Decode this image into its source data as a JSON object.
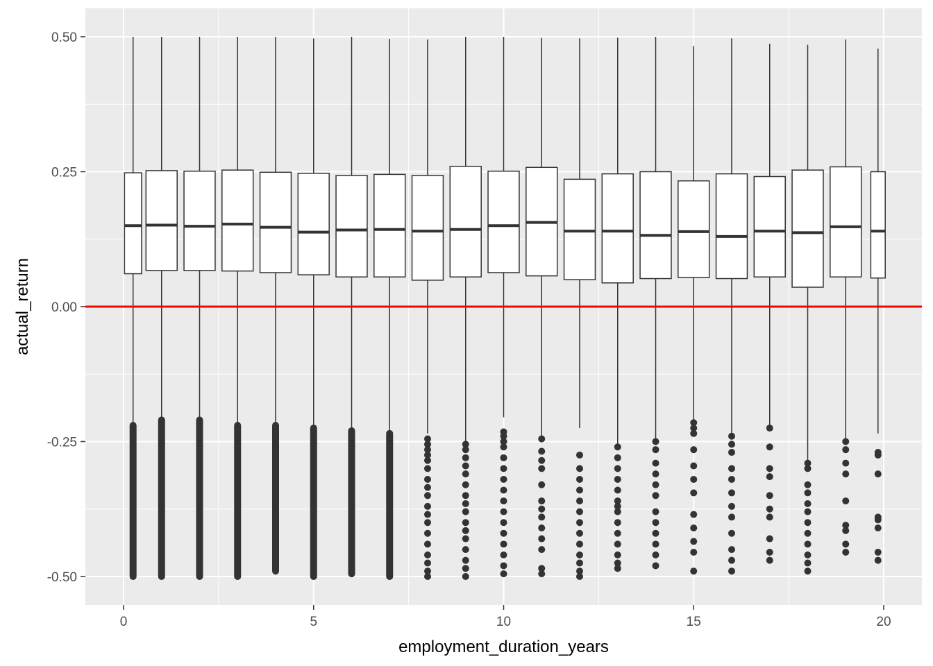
{
  "chart_data": {
    "type": "boxplot",
    "title": "",
    "xlabel": "employment_duration_years",
    "ylabel": "actual_return",
    "xlim": [
      -0.9,
      20.5
    ],
    "ylim": [
      -0.55,
      0.555
    ],
    "x_ticks": [
      0,
      5,
      10,
      15,
      20
    ],
    "x_tick_labels": [
      "0",
      "5",
      "10",
      "15",
      "20"
    ],
    "y_ticks": [
      -0.5,
      -0.25,
      0,
      0.25,
      0.5
    ],
    "y_tick_labels": [
      "-0.50",
      "-0.25",
      "0.00",
      "0.25",
      "0.50"
    ],
    "grid": true,
    "panel_background": "#ebebeb",
    "box_fill": "#ffffff",
    "box_outline": "#333333",
    "outlier_color": "#333333",
    "reference_line": {
      "y": 0,
      "color": "#ff0000"
    },
    "boxes": [
      {
        "x": 0.25,
        "width": 0.45,
        "q1": 0.061,
        "median": 0.15,
        "q3": 0.248,
        "whisker_low": -0.22,
        "whisker_high": 0.5
      },
      {
        "x": 1,
        "width": 0.82,
        "q1": 0.067,
        "median": 0.151,
        "q3": 0.252,
        "whisker_low": -0.21,
        "whisker_high": 0.5
      },
      {
        "x": 2,
        "width": 0.82,
        "q1": 0.067,
        "median": 0.149,
        "q3": 0.251,
        "whisker_low": -0.21,
        "whisker_high": 0.5
      },
      {
        "x": 3,
        "width": 0.82,
        "q1": 0.066,
        "median": 0.153,
        "q3": 0.253,
        "whisker_low": -0.22,
        "whisker_high": 0.5
      },
      {
        "x": 4,
        "width": 0.82,
        "q1": 0.063,
        "median": 0.147,
        "q3": 0.249,
        "whisker_low": -0.22,
        "whisker_high": 0.5
      },
      {
        "x": 5,
        "width": 0.82,
        "q1": 0.059,
        "median": 0.138,
        "q3": 0.247,
        "whisker_low": -0.225,
        "whisker_high": 0.497
      },
      {
        "x": 6,
        "width": 0.82,
        "q1": 0.055,
        "median": 0.142,
        "q3": 0.243,
        "whisker_low": -0.23,
        "whisker_high": 0.5
      },
      {
        "x": 7,
        "width": 0.82,
        "q1": 0.055,
        "median": 0.143,
        "q3": 0.245,
        "whisker_low": -0.235,
        "whisker_high": 0.496
      },
      {
        "x": 8,
        "width": 0.82,
        "q1": 0.049,
        "median": 0.14,
        "q3": 0.243,
        "whisker_low": -0.235,
        "whisker_high": 0.495
      },
      {
        "x": 9,
        "width": 0.82,
        "q1": 0.055,
        "median": 0.143,
        "q3": 0.26,
        "whisker_low": -0.25,
        "whisker_high": 0.5
      },
      {
        "x": 10,
        "width": 0.82,
        "q1": 0.063,
        "median": 0.15,
        "q3": 0.251,
        "whisker_low": -0.205,
        "whisker_high": 0.5
      },
      {
        "x": 11,
        "width": 0.82,
        "q1": 0.057,
        "median": 0.156,
        "q3": 0.258,
        "whisker_low": -0.245,
        "whisker_high": 0.498
      },
      {
        "x": 12,
        "width": 0.82,
        "q1": 0.05,
        "median": 0.14,
        "q3": 0.236,
        "whisker_low": -0.225,
        "whisker_high": 0.497
      },
      {
        "x": 13,
        "width": 0.82,
        "q1": 0.044,
        "median": 0.14,
        "q3": 0.246,
        "whisker_low": -0.26,
        "whisker_high": 0.498
      },
      {
        "x": 14,
        "width": 0.82,
        "q1": 0.052,
        "median": 0.132,
        "q3": 0.25,
        "whisker_low": -0.25,
        "whisker_high": 0.5
      },
      {
        "x": 15,
        "width": 0.82,
        "q1": 0.054,
        "median": 0.139,
        "q3": 0.233,
        "whisker_low": -0.215,
        "whisker_high": 0.483
      },
      {
        "x": 16,
        "width": 0.82,
        "q1": 0.052,
        "median": 0.13,
        "q3": 0.246,
        "whisker_low": -0.24,
        "whisker_high": 0.497
      },
      {
        "x": 17,
        "width": 0.82,
        "q1": 0.055,
        "median": 0.14,
        "q3": 0.241,
        "whisker_low": -0.225,
        "whisker_high": 0.487
      },
      {
        "x": 18,
        "width": 0.82,
        "q1": 0.036,
        "median": 0.137,
        "q3": 0.253,
        "whisker_low": -0.29,
        "whisker_high": 0.485
      },
      {
        "x": 19,
        "width": 0.82,
        "q1": 0.055,
        "median": 0.148,
        "q3": 0.259,
        "whisker_low": -0.245,
        "whisker_high": 0.495
      },
      {
        "x": 19.85,
        "width": 0.38,
        "q1": 0.053,
        "median": 0.14,
        "q3": 0.25,
        "whisker_low": -0.235,
        "whisker_high": 0.478
      }
    ],
    "outliers": [
      {
        "x": 0.25,
        "band": [
          -0.5,
          -0.22
        ]
      },
      {
        "x": 1,
        "band": [
          -0.5,
          -0.21
        ]
      },
      {
        "x": 2,
        "band": [
          -0.5,
          -0.21
        ]
      },
      {
        "x": 3,
        "band": [
          -0.5,
          -0.22
        ]
      },
      {
        "x": 4,
        "band": [
          -0.49,
          -0.22
        ]
      },
      {
        "x": 5,
        "band": [
          -0.5,
          -0.225
        ]
      },
      {
        "x": 6,
        "band": [
          -0.495,
          -0.23
        ]
      },
      {
        "x": 7,
        "band": [
          -0.5,
          -0.235
        ]
      },
      {
        "x": 8,
        "y": [
          -0.245,
          -0.255,
          -0.265,
          -0.275,
          -0.285,
          -0.3,
          -0.32,
          -0.335,
          -0.35,
          -0.37,
          -0.385,
          -0.4,
          -0.42,
          -0.44,
          -0.46,
          -0.475,
          -0.49,
          -0.5
        ]
      },
      {
        "x": 9,
        "y": [
          -0.255,
          -0.265,
          -0.28,
          -0.295,
          -0.31,
          -0.33,
          -0.35,
          -0.365,
          -0.38,
          -0.4,
          -0.415,
          -0.43,
          -0.45,
          -0.47,
          -0.485,
          -0.5
        ]
      },
      {
        "x": 10,
        "y": [
          -0.232,
          -0.24,
          -0.25,
          -0.26,
          -0.28,
          -0.3,
          -0.32,
          -0.34,
          -0.36,
          -0.38,
          -0.4,
          -0.42,
          -0.44,
          -0.46,
          -0.48,
          -0.495
        ]
      },
      {
        "x": 11,
        "y": [
          -0.245,
          -0.268,
          -0.285,
          -0.3,
          -0.33,
          -0.36,
          -0.375,
          -0.39,
          -0.41,
          -0.43,
          -0.45,
          -0.485,
          -0.495
        ]
      },
      {
        "x": 12,
        "y": [
          -0.275,
          -0.3,
          -0.32,
          -0.34,
          -0.36,
          -0.38,
          -0.4,
          -0.42,
          -0.44,
          -0.46,
          -0.475,
          -0.49,
          -0.5
        ]
      },
      {
        "x": 13,
        "y": [
          -0.26,
          -0.28,
          -0.3,
          -0.32,
          -0.34,
          -0.36,
          -0.37,
          -0.38,
          -0.4,
          -0.42,
          -0.44,
          -0.46,
          -0.475,
          -0.485
        ]
      },
      {
        "x": 14,
        "y": [
          -0.25,
          -0.265,
          -0.29,
          -0.31,
          -0.33,
          -0.35,
          -0.38,
          -0.4,
          -0.42,
          -0.44,
          -0.46,
          -0.48
        ]
      },
      {
        "x": 15,
        "y": [
          -0.215,
          -0.225,
          -0.235,
          -0.265,
          -0.295,
          -0.32,
          -0.345,
          -0.385,
          -0.41,
          -0.435,
          -0.455,
          -0.49
        ]
      },
      {
        "x": 16,
        "y": [
          -0.24,
          -0.255,
          -0.27,
          -0.3,
          -0.32,
          -0.345,
          -0.37,
          -0.39,
          -0.42,
          -0.45,
          -0.47,
          -0.49
        ]
      },
      {
        "x": 17,
        "y": [
          -0.225,
          -0.26,
          -0.3,
          -0.315,
          -0.35,
          -0.375,
          -0.39,
          -0.43,
          -0.455,
          -0.47
        ]
      },
      {
        "x": 18,
        "y": [
          -0.29,
          -0.3,
          -0.33,
          -0.345,
          -0.365,
          -0.38,
          -0.4,
          -0.42,
          -0.44,
          -0.46,
          -0.475,
          -0.49
        ]
      },
      {
        "x": 19,
        "y": [
          -0.25,
          -0.265,
          -0.29,
          -0.31,
          -0.36,
          -0.405,
          -0.415,
          -0.44,
          -0.455
        ]
      },
      {
        "x": 19.85,
        "y": [
          -0.27,
          -0.275,
          -0.31,
          -0.39,
          -0.395,
          -0.41,
          -0.455,
          -0.47
        ]
      }
    ]
  }
}
